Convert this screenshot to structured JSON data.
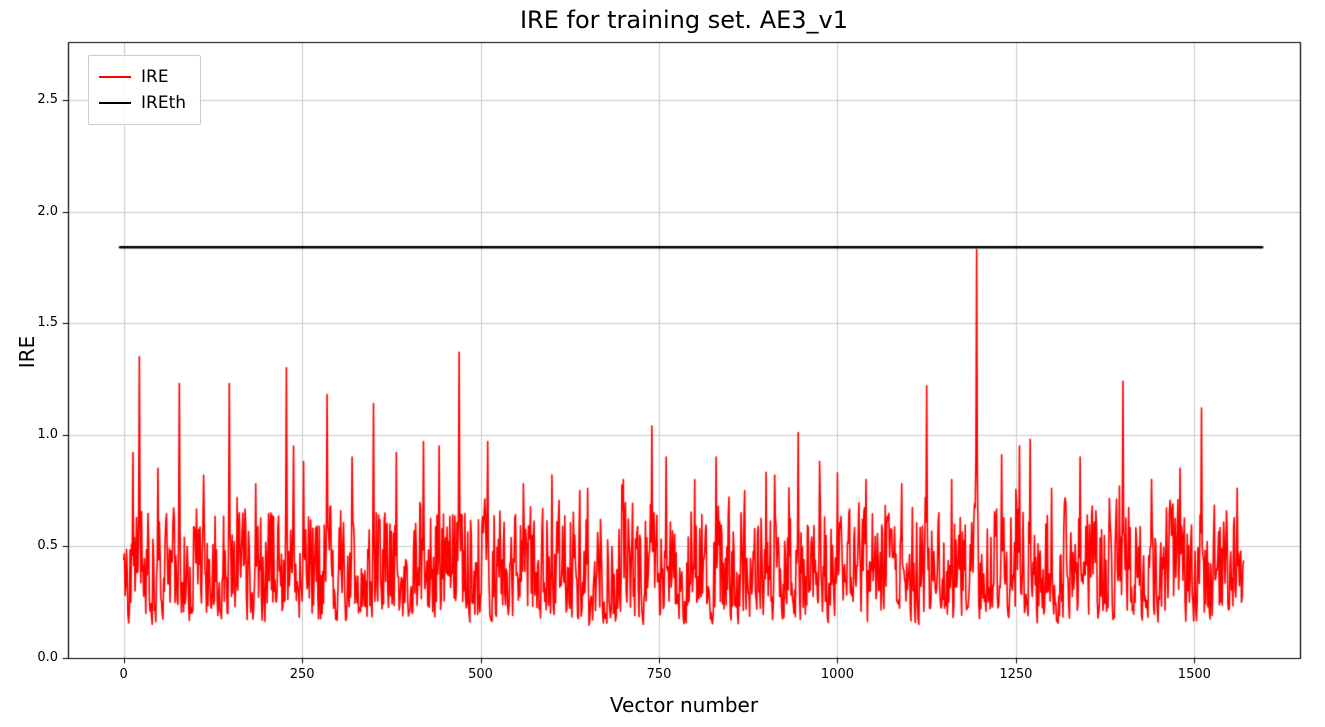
{
  "chart_data": {
    "type": "line",
    "title": "IRE for training set. AE3_v1",
    "xlabel": "Vector number",
    "ylabel": "IRE",
    "xlim": [
      -78,
      1648
    ],
    "ylim": [
      0,
      2.76
    ],
    "xticks": [
      "0",
      "250",
      "500",
      "750",
      "1000",
      "1250",
      "1500"
    ],
    "yticks": [
      "0.0",
      "0.5",
      "1.0",
      "1.5",
      "2.0",
      "2.5"
    ],
    "grid": true,
    "grid_color": "#cccccc",
    "background": "#ffffff",
    "legend": {
      "position": "upper-left",
      "entries": [
        {
          "label": "IRE",
          "color": "#ff0000",
          "line_width": 2
        },
        {
          "label": "IREth",
          "color": "#000000",
          "line_width": 2.5
        }
      ]
    },
    "series": [
      {
        "name": "IRE",
        "color": "#ff0000",
        "kind": "noisy-line",
        "n_points": 1570,
        "x_start": 0,
        "line_width": 1.6,
        "synthesis": {
          "seed": 42,
          "baseline_min": 0.07,
          "baseline_max": 0.78,
          "baseline_mean": 0.38,
          "peak_probability": 0.025
        },
        "spikes": [
          [
            13,
            0.92
          ],
          [
            22,
            1.35
          ],
          [
            48,
            0.85
          ],
          [
            78,
            1.23
          ],
          [
            112,
            0.82
          ],
          [
            148,
            1.23
          ],
          [
            185,
            0.78
          ],
          [
            228,
            1.3
          ],
          [
            238,
            0.95
          ],
          [
            252,
            0.88
          ],
          [
            285,
            1.18
          ],
          [
            320,
            0.9
          ],
          [
            350,
            1.14
          ],
          [
            382,
            0.92
          ],
          [
            420,
            0.97
          ],
          [
            442,
            0.95
          ],
          [
            470,
            1.37
          ],
          [
            510,
            0.97
          ],
          [
            560,
            0.78
          ],
          [
            600,
            0.82
          ],
          [
            650,
            0.76
          ],
          [
            700,
            0.8
          ],
          [
            740,
            1.04
          ],
          [
            760,
            0.9
          ],
          [
            800,
            0.8
          ],
          [
            830,
            0.9
          ],
          [
            870,
            0.75
          ],
          [
            912,
            0.82
          ],
          [
            945,
            1.01
          ],
          [
            975,
            0.88
          ],
          [
            1000,
            0.83
          ],
          [
            1040,
            0.8
          ],
          [
            1090,
            0.78
          ],
          [
            1125,
            1.22
          ],
          [
            1160,
            0.8
          ],
          [
            1195,
            1.83
          ],
          [
            1230,
            0.91
          ],
          [
            1255,
            0.95
          ],
          [
            1270,
            0.98
          ],
          [
            1300,
            0.76
          ],
          [
            1340,
            0.9
          ],
          [
            1395,
            0.77
          ],
          [
            1400,
            1.24
          ],
          [
            1440,
            0.8
          ],
          [
            1480,
            0.85
          ],
          [
            1510,
            1.12
          ],
          [
            1545,
            0.66
          ],
          [
            1560,
            0.76
          ]
        ]
      },
      {
        "name": "IREth",
        "color": "#000000",
        "kind": "hline",
        "y": 1.84,
        "x_span": [
          -5,
          1595
        ],
        "line_width": 2.5
      }
    ]
  }
}
